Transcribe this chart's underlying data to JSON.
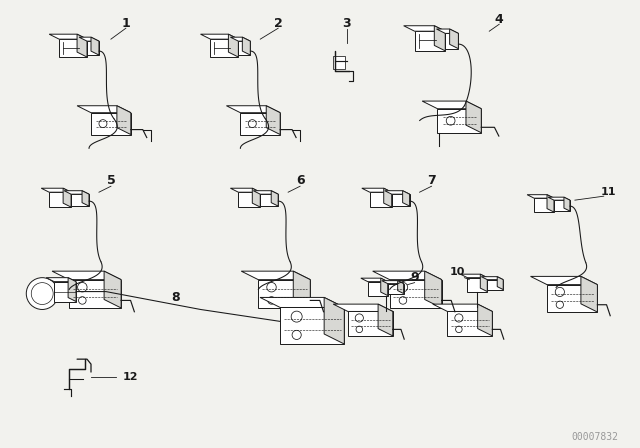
{
  "bg_color": "#f2f2ee",
  "line_color": "#1a1a1a",
  "fill_color": "#ffffff",
  "fill_dark": "#d8d8d4",
  "watermark": "00007832",
  "watermark_color": "#999999",
  "fig_width": 6.4,
  "fig_height": 4.48,
  "dpi": 100
}
